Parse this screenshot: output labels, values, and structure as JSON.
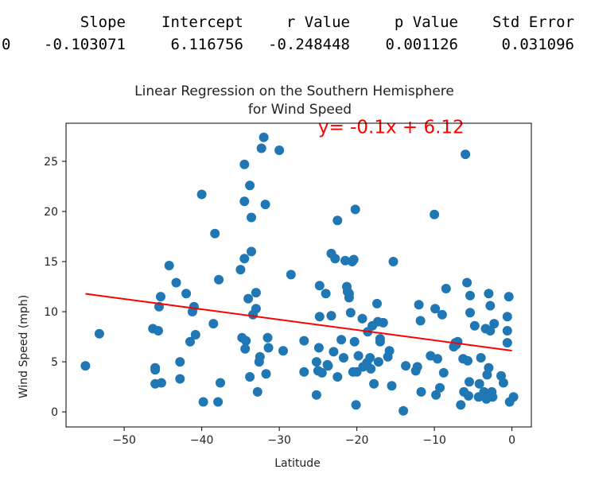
{
  "stats_table": {
    "headers": [
      "Slope",
      "Intercept",
      "r Value",
      "p Value",
      "Std Error"
    ],
    "rows": [
      {
        "index": "0",
        "values": [
          "-0.103071",
          "6.116756",
          "-0.248448",
          "0.001126",
          "0.031096"
        ]
      }
    ]
  },
  "chart_data": {
    "type": "scatter",
    "title": [
      "Linear Regression on the Southern Hemisphere",
      "for Wind Speed"
    ],
    "xlabel": "Latitude",
    "ylabel": "Wind Speed (mph)",
    "xlim": [
      -57.5,
      2.5
    ],
    "ylim": [
      -1.5,
      28.8
    ],
    "xticks": [
      -50,
      -40,
      -30,
      -20,
      -10,
      0
    ],
    "xtick_labels": [
      "−50",
      "−40",
      "−30",
      "−20",
      "−10",
      "0"
    ],
    "yticks": [
      0,
      5,
      10,
      15,
      20,
      25
    ],
    "ytick_labels": [
      "0",
      "5",
      "10",
      "15",
      "20",
      "25"
    ],
    "grid": false,
    "point_color": "#1f77b4",
    "line_color": "#ff0000",
    "regression": {
      "slope": -0.103071,
      "intercept": 6.116756,
      "x_range": [
        -55,
        0
      ]
    },
    "equation": {
      "text": "y= -0.1x + 6.12",
      "x": -25,
      "y": 27.8
    },
    "points": [
      [
        -55.0,
        4.6
      ],
      [
        -53.2,
        7.8
      ],
      [
        -46.3,
        8.3
      ],
      [
        -46.0,
        4.4
      ],
      [
        -46.0,
        4.2
      ],
      [
        -46.0,
        2.8
      ],
      [
        -45.6,
        8.1
      ],
      [
        -45.5,
        10.5
      ],
      [
        -45.3,
        11.5
      ],
      [
        -45.2,
        2.9
      ],
      [
        -44.2,
        14.6
      ],
      [
        -43.3,
        12.9
      ],
      [
        -42.8,
        5.0
      ],
      [
        -42.8,
        3.3
      ],
      [
        -42.0,
        11.8
      ],
      [
        -41.5,
        7.0
      ],
      [
        -41.2,
        10.0
      ],
      [
        -41.0,
        10.5
      ],
      [
        -40.8,
        7.7
      ],
      [
        -40.0,
        21.7
      ],
      [
        -39.8,
        1.0
      ],
      [
        -38.5,
        8.8
      ],
      [
        -38.3,
        17.8
      ],
      [
        -37.9,
        1.0
      ],
      [
        -37.8,
        13.2
      ],
      [
        -37.6,
        2.9
      ],
      [
        -35.0,
        14.2
      ],
      [
        -34.8,
        7.4
      ],
      [
        -34.5,
        15.3
      ],
      [
        -34.5,
        21.0
      ],
      [
        -34.5,
        24.7
      ],
      [
        -34.4,
        6.3
      ],
      [
        -34.3,
        7.1
      ],
      [
        -34.0,
        11.3
      ],
      [
        -33.8,
        22.6
      ],
      [
        -33.8,
        3.5
      ],
      [
        -33.6,
        19.4
      ],
      [
        -33.6,
        16.0
      ],
      [
        -33.4,
        9.7
      ],
      [
        -33.0,
        10.3
      ],
      [
        -33.0,
        11.9
      ],
      [
        -32.8,
        2.0
      ],
      [
        -32.6,
        5.0
      ],
      [
        -32.5,
        5.5
      ],
      [
        -32.3,
        26.3
      ],
      [
        -32.0,
        27.4
      ],
      [
        -31.8,
        20.7
      ],
      [
        -31.7,
        3.8
      ],
      [
        -31.5,
        7.4
      ],
      [
        -31.4,
        6.4
      ],
      [
        -30.0,
        26.1
      ],
      [
        -29.5,
        6.1
      ],
      [
        -28.5,
        13.7
      ],
      [
        -26.8,
        7.1
      ],
      [
        -26.8,
        4.0
      ],
      [
        -25.2,
        5.0
      ],
      [
        -25.2,
        1.7
      ],
      [
        -25.0,
        4.1
      ],
      [
        -24.9,
        6.4
      ],
      [
        -24.8,
        12.6
      ],
      [
        -24.8,
        9.5
      ],
      [
        -24.5,
        3.9
      ],
      [
        -24.0,
        11.8
      ],
      [
        -23.8,
        4.7
      ],
      [
        -23.7,
        4.6
      ],
      [
        -23.3,
        15.8
      ],
      [
        -23.3,
        9.6
      ],
      [
        -23.0,
        6.0
      ],
      [
        -22.8,
        15.3
      ],
      [
        -22.5,
        3.5
      ],
      [
        -22.5,
        19.1
      ],
      [
        -22.0,
        7.2
      ],
      [
        -21.7,
        5.4
      ],
      [
        -21.5,
        15.1
      ],
      [
        -21.3,
        12.5
      ],
      [
        -21.2,
        12.0
      ],
      [
        -21.0,
        11.4
      ],
      [
        -21.0,
        11.8
      ],
      [
        -20.8,
        9.9
      ],
      [
        -20.6,
        15.0
      ],
      [
        -20.5,
        4.0
      ],
      [
        -20.4,
        15.2
      ],
      [
        -20.3,
        7.0
      ],
      [
        -20.2,
        20.2
      ],
      [
        -20.1,
        0.7
      ],
      [
        -20.0,
        4.0
      ],
      [
        -19.8,
        5.6
      ],
      [
        -19.3,
        9.3
      ],
      [
        -19.2,
        4.5
      ],
      [
        -18.7,
        4.9
      ],
      [
        -18.6,
        8.0
      ],
      [
        -18.3,
        5.4
      ],
      [
        -18.2,
        4.3
      ],
      [
        -18.0,
        8.6
      ],
      [
        -17.8,
        2.8
      ],
      [
        -17.4,
        10.8
      ],
      [
        -17.3,
        9.0
      ],
      [
        -17.2,
        5.0
      ],
      [
        -17.0,
        7.0
      ],
      [
        -17.0,
        7.3
      ],
      [
        -16.6,
        8.9
      ],
      [
        -16.0,
        5.5
      ],
      [
        -15.8,
        6.1
      ],
      [
        -15.5,
        2.6
      ],
      [
        -15.3,
        15.0
      ],
      [
        -14.0,
        0.1
      ],
      [
        -13.7,
        4.6
      ],
      [
        -12.4,
        4.1
      ],
      [
        -12.2,
        4.5
      ],
      [
        -12.0,
        10.7
      ],
      [
        -11.8,
        9.1
      ],
      [
        -11.7,
        2.0
      ],
      [
        -10.5,
        5.6
      ],
      [
        -10.0,
        19.7
      ],
      [
        -9.9,
        10.3
      ],
      [
        -9.8,
        1.7
      ],
      [
        -9.6,
        5.3
      ],
      [
        -9.3,
        2.4
      ],
      [
        -9.0,
        9.7
      ],
      [
        -8.8,
        3.9
      ],
      [
        -8.5,
        12.3
      ],
      [
        -7.5,
        6.5
      ],
      [
        -7.3,
        6.9
      ],
      [
        -7.2,
        6.7
      ],
      [
        -7.0,
        7.0
      ],
      [
        -6.6,
        0.7
      ],
      [
        -6.3,
        5.3
      ],
      [
        -6.2,
        2.0
      ],
      [
        -6.0,
        25.7
      ],
      [
        -5.8,
        12.9
      ],
      [
        -5.7,
        5.1
      ],
      [
        -5.6,
        1.6
      ],
      [
        -5.5,
        3.0
      ],
      [
        -5.4,
        11.6
      ],
      [
        -5.4,
        9.9
      ],
      [
        -4.8,
        8.6
      ],
      [
        -4.3,
        1.5
      ],
      [
        -4.2,
        2.8
      ],
      [
        -4.0,
        5.4
      ],
      [
        -3.6,
        2.0
      ],
      [
        -3.4,
        8.3
      ],
      [
        -3.3,
        1.3
      ],
      [
        -3.2,
        3.7
      ],
      [
        -3.0,
        4.4
      ],
      [
        -3.0,
        11.8
      ],
      [
        -2.8,
        10.6
      ],
      [
        -2.8,
        8.1
      ],
      [
        -2.6,
        2.0
      ],
      [
        -2.5,
        1.5
      ],
      [
        -2.3,
        8.8
      ],
      [
        -1.4,
        3.6
      ],
      [
        -1.1,
        2.9
      ],
      [
        -0.6,
        6.9
      ],
      [
        -0.6,
        9.5
      ],
      [
        -0.6,
        8.1
      ],
      [
        -0.4,
        11.5
      ],
      [
        -0.3,
        1.0
      ],
      [
        0.2,
        1.5
      ]
    ]
  }
}
